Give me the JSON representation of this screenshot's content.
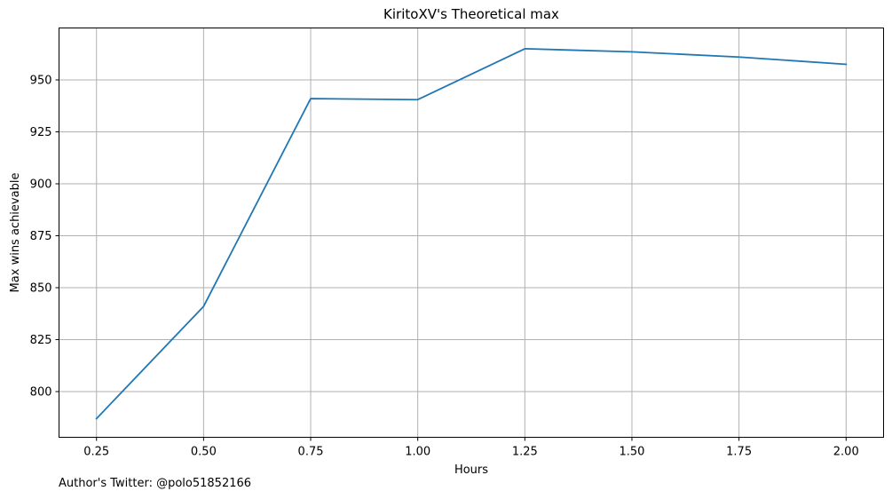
{
  "chart_data": {
    "type": "line",
    "title": "KiritoXV's Theoretical max",
    "xlabel": "Hours",
    "ylabel": "Max wins achievable",
    "x": [
      0.25,
      0.5,
      0.75,
      1.0,
      1.25,
      1.5,
      1.75,
      2.0
    ],
    "x_tick_values": [
      0.25,
      0.5,
      0.75,
      1.0,
      1.25,
      1.5,
      1.75,
      2.0
    ],
    "x_tick_labels": [
      "0.25",
      "0.50",
      "0.75",
      "1.00",
      "1.25",
      "1.50",
      "1.75",
      "2.00"
    ],
    "y_tick_values": [
      800,
      825,
      850,
      875,
      900,
      925,
      950
    ],
    "y_tick_labels": [
      "800",
      "825",
      "850",
      "875",
      "900",
      "925",
      "950"
    ],
    "series": [
      {
        "values": [
          787,
          841,
          941,
          940.5,
          965,
          963.5,
          961,
          957.5
        ]
      }
    ],
    "xlim": [
      0.1625,
      2.0875
    ],
    "ylim": [
      778,
      975
    ],
    "grid": true,
    "line_color": "#1f77b4",
    "grid_color": "#b0b0b0"
  },
  "footer": {
    "text": "Author's Twitter: @polo51852166"
  }
}
